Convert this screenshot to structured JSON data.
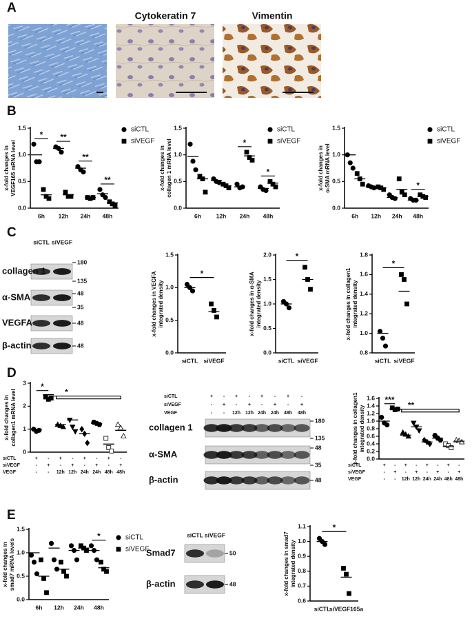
{
  "panel_labels": [
    "A",
    "B",
    "C",
    "D",
    "E"
  ],
  "image_titles": [
    "Cytokeratin 7",
    "Vimentin"
  ],
  "blots": [
    {
      "header": [
        "siCTL",
        "siVEGF"
      ],
      "rows": [
        "collagen 1",
        "α-SMA",
        "VEGFA",
        "β-actin"
      ],
      "markers": [
        "180",
        "135",
        "48",
        "35",
        "48",
        "48"
      ]
    },
    {
      "conditions": [
        {
          "label": "siCTL",
          "values": [
            "+",
            "-",
            "+",
            "-",
            "+",
            "-",
            "+",
            "-"
          ]
        },
        {
          "label": "siVEGF",
          "values": [
            "-",
            "+",
            "-",
            "+",
            "-",
            "+",
            "-",
            "+"
          ]
        },
        {
          "label": "VEGF",
          "values": [
            "-",
            "-",
            "12h",
            "12h",
            "24h",
            "24h",
            "48h",
            "48h"
          ]
        }
      ],
      "rows": [
        "collagen 1",
        "α-SMA",
        "β-actin"
      ],
      "markers": [
        "180",
        "135",
        "48",
        "35",
        "48"
      ]
    },
    {
      "header": [
        "siCTL",
        "siVEGF"
      ],
      "rows": [
        "Smad7",
        "β-actin"
      ],
      "markers": [
        "50",
        "48"
      ]
    }
  ],
  "chart_data": [
    {
      "type": "dot",
      "ylabel": [
        "x-fold changes in",
        "VEGF165 mRNA level"
      ],
      "categories": [
        "6h",
        "12h",
        "24h",
        "48h"
      ],
      "series": [
        {
          "name": "siCTL",
          "marker": "circle",
          "values": [
            [
              1.2,
              0.87,
              0.87
            ],
            [
              1.15,
              1.12,
              1.05
            ],
            [
              0.78,
              0.72,
              0.68
            ],
            [
              0.35,
              0.25,
              0.2
            ]
          ],
          "means": [
            1.0,
            1.12,
            0.75,
            0.27
          ]
        },
        {
          "name": "siVEGF",
          "marker": "square",
          "values": [
            [
              0.35,
              0.22,
              0.18
            ],
            [
              0.3,
              0.22,
              0.22
            ],
            [
              0.2,
              0.18,
              0.2
            ],
            [
              0.12,
              0.08,
              0.05
            ]
          ],
          "means": [
            0.25,
            0.25,
            0.2,
            0.1
          ]
        }
      ],
      "significance": [
        "*",
        "**",
        "**",
        "**"
      ],
      "ylim": [
        0,
        1.5
      ],
      "yticks": [
        {
          "value": 0,
          "label": "0.0"
        },
        0.5,
        {
          "value": 1,
          "label": "1.0"
        },
        1.5
      ]
    },
    {
      "type": "dot",
      "ylabel": [
        "x-fold changes in",
        "collagen 1 mRNA level"
      ],
      "categories": [
        "6h",
        "12h",
        "24h",
        "48h"
      ],
      "series": [
        {
          "name": "siCTL",
          "marker": "circle",
          "values": [
            [
              1.2,
              0.88,
              0.72
            ],
            [
              0.55,
              0.5,
              0.48
            ],
            [
              0.45,
              0.38,
              0.4
            ],
            [
              0.4,
              0.35,
              0.33
            ]
          ],
          "means": [
            0.97,
            0.52,
            0.4,
            0.37
          ]
        },
        {
          "name": "siVEGF",
          "marker": "square",
          "values": [
            [
              0.6,
              0.55,
              0.3
            ],
            [
              0.45,
              0.42,
              0.38
            ],
            [
              1.05,
              0.95,
              0.9
            ],
            [
              0.5,
              0.45,
              0.4
            ]
          ],
          "means": [
            0.55,
            0.42,
            0.98,
            0.47
          ]
        }
      ],
      "significance": [
        null,
        null,
        "*",
        "*"
      ],
      "ylim": [
        0,
        1.5
      ],
      "yticks": [
        {
          "value": 0,
          "label": "0.0"
        },
        0.5,
        {
          "value": 1,
          "label": "1.0"
        },
        1.5
      ]
    },
    {
      "type": "dot",
      "ylabel": [
        "x-fold changes in",
        "α-SMA  mRNA level"
      ],
      "categories": [
        "6h",
        "12h",
        "24h",
        "48h"
      ],
      "series": [
        {
          "name": "siCTL",
          "marker": "circle",
          "values": [
            [
              1.0,
              0.85,
              0.75
            ],
            [
              0.42,
              0.4,
              0.38
            ],
            [
              0.25,
              0.2,
              0.18
            ],
            [
              0.18,
              0.15,
              0.15
            ]
          ],
          "means": [
            1.0,
            0.4,
            0.2,
            0.15
          ]
        },
        {
          "name": "siVEGF",
          "marker": "square",
          "values": [
            [
              0.65,
              0.55,
              0.45
            ],
            [
              0.4,
              0.38,
              0.35
            ],
            [
              0.55,
              0.3,
              0.25
            ],
            [
              0.25,
              0.22,
              0.2
            ]
          ],
          "means": [
            0.55,
            0.38,
            0.35,
            0.22
          ]
        }
      ],
      "significance": [
        null,
        null,
        null,
        "*"
      ],
      "ylim": [
        0,
        1.5
      ],
      "yticks": [
        {
          "value": 0,
          "label": "0.0"
        },
        0.5,
        {
          "value": 1,
          "label": "1.0"
        },
        1.5
      ]
    },
    {
      "type": "dot",
      "ylabel": [
        "x-fold changes in VEGFA",
        "integrated density"
      ],
      "categories": [
        "siCTL",
        "siVEGF"
      ],
      "markers": [
        "circle",
        "square"
      ],
      "values": [
        [
          1.05,
          1.0,
          0.95
        ],
        [
          0.75,
          0.65,
          0.55
        ]
      ],
      "means": [
        1.0,
        0.63
      ],
      "significance": "*",
      "ylim": [
        0,
        1.5
      ],
      "yticks": [
        {
          "value": 0,
          "label": "0.0"
        },
        0.5,
        {
          "value": 1,
          "label": "1.0"
        },
        1.5
      ]
    },
    {
      "type": "dot",
      "ylabel": [
        "x-fold changes in α-SMA",
        "integrated density"
      ],
      "categories": [
        "siCTL",
        "siVEGF"
      ],
      "markers": [
        "circle",
        "square"
      ],
      "values": [
        [
          1.05,
          1.0,
          0.92
        ],
        [
          1.75,
          1.5,
          1.3
        ]
      ],
      "means": [
        1.0,
        1.5
      ],
      "significance": "*",
      "ylim": [
        0,
        2
      ],
      "yticks": [
        {
          "value": 0,
          "label": "0.0"
        },
        0.5,
        {
          "value": 1,
          "label": "1.0"
        },
        1.5,
        {
          "value": 2,
          "label": "2.0"
        }
      ]
    },
    {
      "type": "dot",
      "ylabel": [
        "x-fold changes in collagen1",
        "integrated density"
      ],
      "categories": [
        "siCTL",
        "siVEGF"
      ],
      "markers": [
        "circle",
        "square"
      ],
      "values": [
        [
          1.02,
          0.95,
          0.87
        ],
        [
          1.6,
          1.55,
          1.3
        ]
      ],
      "means": [
        1.0,
        1.43
      ],
      "significance": "*",
      "ylim": [
        0.8,
        1.8
      ],
      "yticks": [
        0.8,
        {
          "value": 1,
          "label": "1.0"
        },
        1.2,
        1.4,
        1.6,
        1.8
      ]
    },
    {
      "type": "dot",
      "ylabel": [
        "x-fold changes in",
        "collagen1 mRNA level"
      ],
      "conditions": [
        {
          "label": "siCTL",
          "values": [
            "+",
            "-",
            "+",
            "-",
            "+",
            "-",
            "+",
            "-"
          ]
        },
        {
          "label": "siVEGF",
          "values": [
            "-",
            "+",
            "-",
            "+",
            "-",
            "+",
            "-",
            "+"
          ]
        },
        {
          "label": "VEGF",
          "values": [
            "-",
            "-",
            "12h",
            "12h",
            "24h",
            "24h",
            "48h",
            "48h"
          ]
        }
      ],
      "markers": [
        "circle",
        "square",
        "triangle",
        "triangle-down",
        "diamond",
        "hexagon",
        "square-open",
        "triangle-open"
      ],
      "values": [
        [
          1.0,
          0.9,
          0.95
        ],
        [
          2.4,
          2.3,
          2.35
        ],
        [
          1.2,
          1.15,
          1.1
        ],
        [
          1.4,
          1.1,
          0.9
        ],
        [
          1.0,
          0.8,
          0.4
        ],
        [
          1.3,
          1.25,
          1.2
        ],
        [
          0.6,
          0.2,
          0.05
        ],
        [
          1.2,
          1.05,
          0.7
        ]
      ],
      "means": [
        1.0,
        2.5,
        1.2,
        1.4,
        0.8,
        1.25,
        0.35,
        0.95
      ],
      "annotations": [
        "*",
        "*"
      ],
      "ylim": [
        0,
        3
      ],
      "yticks": [
        0,
        1,
        2,
        3
      ]
    },
    {
      "type": "dot",
      "ylabel": [
        "x-fold changes in collagen1",
        "integrated density"
      ],
      "conditions": [
        {
          "label": "siCTL",
          "values": [
            "+",
            "-",
            "+",
            "-",
            "+",
            "-",
            "+",
            "-"
          ]
        },
        {
          "label": "siVEGF",
          "values": [
            "-",
            "+",
            "-",
            "+",
            "-",
            "+",
            "-",
            "+"
          ]
        },
        {
          "label": "VEGF",
          "values": [
            "-",
            "-",
            "12h",
            "12h",
            "24h",
            "24h",
            "48h",
            "48h"
          ]
        }
      ],
      "markers": [
        "circle",
        "square",
        "triangle",
        "triangle-down",
        "diamond",
        "hexagon",
        "square-open",
        "triangle-open"
      ],
      "values": [
        [
          1.1,
          0.95,
          0.9
        ],
        [
          1.35,
          1.3,
          1.32
        ],
        [
          0.7,
          0.65,
          0.6
        ],
        [
          0.95,
          0.85,
          0.75
        ],
        [
          0.5,
          0.45,
          0.4
        ],
        [
          0.62,
          0.55,
          0.5
        ],
        [
          0.4,
          0.35,
          0.3
        ],
        [
          0.5,
          0.48,
          0.45
        ]
      ],
      "means": [
        1.0,
        1.32,
        0.63,
        0.85,
        0.45,
        0.55,
        0.33,
        0.47
      ],
      "annotations": [
        "***",
        "**"
      ],
      "ylim": [
        0,
        1.6
      ],
      "yticks": [
        {
          "value": 0,
          "label": "0.0"
        },
        0.2,
        0.4,
        0.6,
        0.8,
        {
          "value": 1,
          "label": "1.0"
        },
        1.2,
        1.4,
        1.6
      ]
    },
    {
      "type": "dot",
      "ylabel": [
        "x-fold changes in",
        "smad7 mRNA levels"
      ],
      "categories": [
        "6h",
        "12h",
        "24h",
        "48h"
      ],
      "series": [
        {
          "name": "siCTL",
          "marker": "circle",
          "values": [
            [
              0.95,
              0.8,
              0.55
            ],
            [
              1.2,
              0.85,
              0.65
            ],
            [
              1.15,
              1.05,
              0.85
            ],
            [
              1.15,
              1.05,
              0.85
            ]
          ],
          "means": [
            1.0,
            1.1,
            1.05,
            1.05
          ]
        },
        {
          "name": "siVEGF",
          "marker": "square",
          "values": [
            [
              0.85,
              0.45,
              0.15
            ],
            [
              0.8,
              0.6,
              0.5
            ],
            [
              1.15,
              1.1,
              1.05
            ],
            [
              0.8,
              0.65,
              0.6
            ]
          ],
          "means": [
            0.5,
            0.65,
            1.1,
            0.68
          ]
        }
      ],
      "significance": [
        null,
        null,
        null,
        "*"
      ],
      "ylim": [
        0,
        1.5
      ],
      "yticks": [
        {
          "value": 0,
          "label": "0.0"
        },
        0.5,
        {
          "value": 1,
          "label": "1.0"
        },
        1.5
      ]
    },
    {
      "type": "dot",
      "ylabel": [
        "x-fold changes in smad7",
        "integrated density"
      ],
      "categories": [
        "siCTL",
        "siVEGF165a"
      ],
      "markers": [
        "circle",
        "square"
      ],
      "values": [
        [
          1.02,
          1.0,
          0.98
        ],
        [
          0.82,
          0.78,
          0.65
        ]
      ],
      "means": [
        1.0,
        0.76
      ],
      "significance": "*",
      "ylim": [
        0.6,
        1.1
      ],
      "yticks": [
        0.6,
        0.7,
        0.8,
        0.9,
        {
          "value": 1,
          "label": "1.0"
        },
        1.1
      ]
    }
  ]
}
